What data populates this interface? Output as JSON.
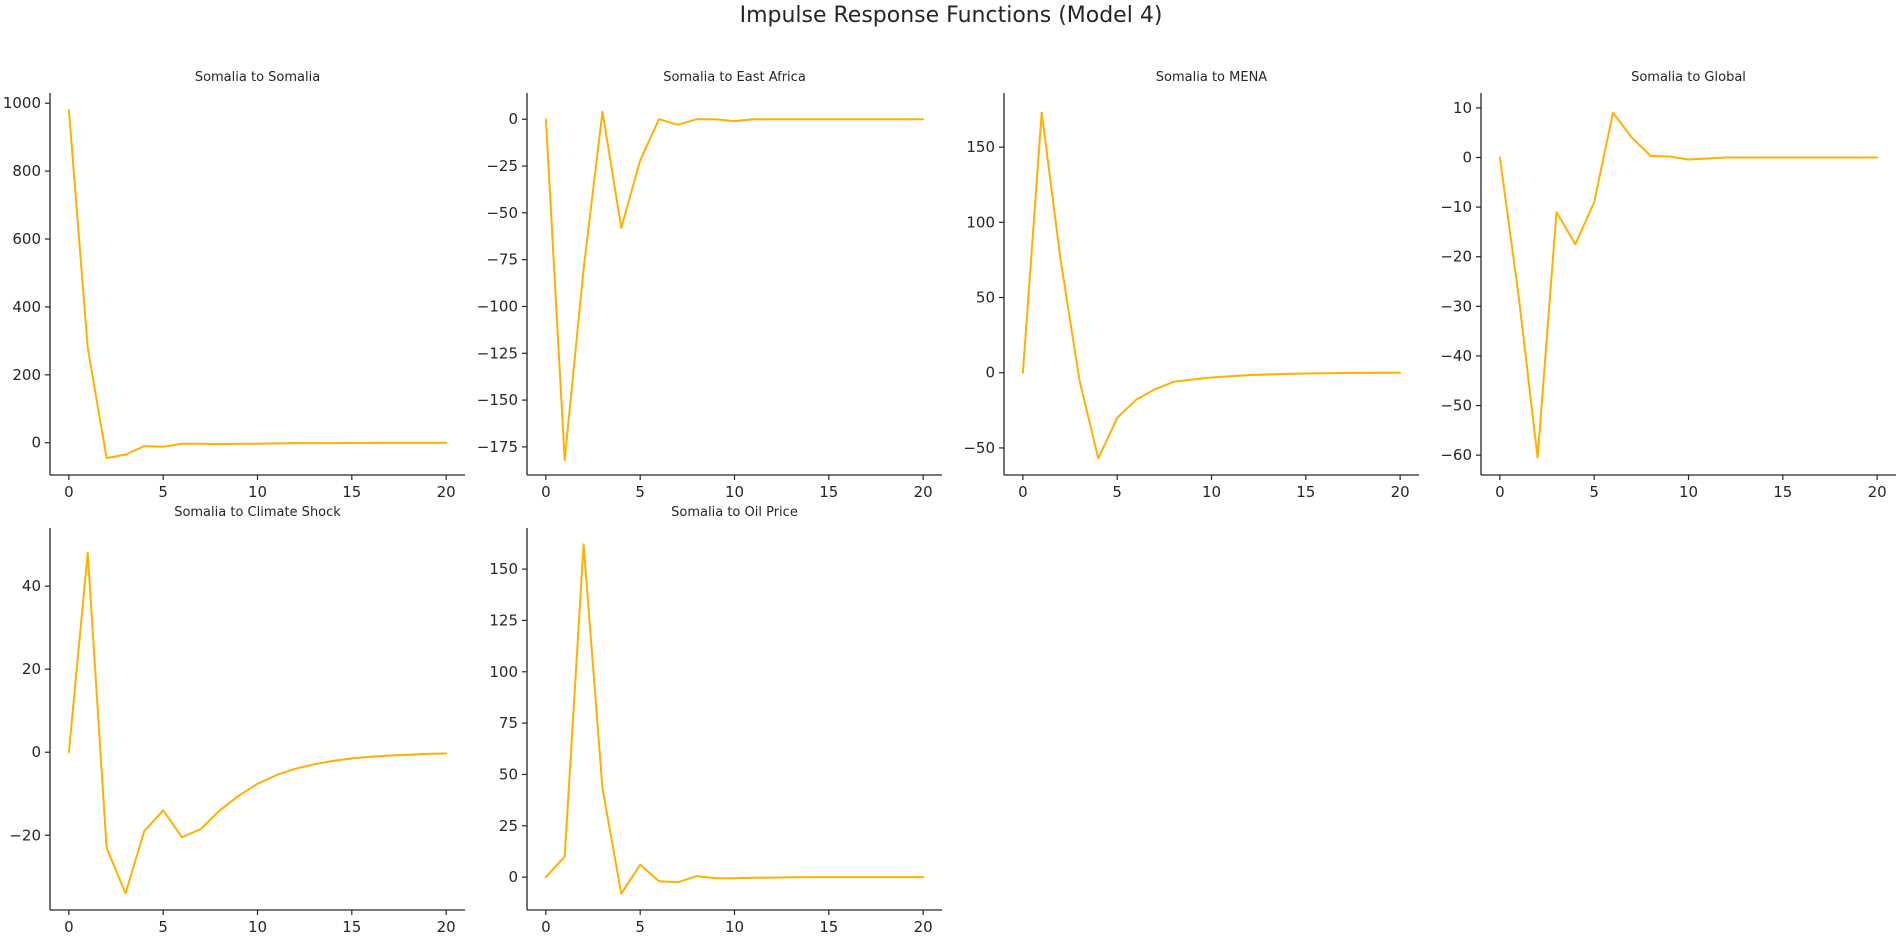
{
  "figure": {
    "title": "Impulse Response Functions (Model 4)",
    "line_color": "#FFB000"
  },
  "chart_data": [
    {
      "type": "line",
      "title": "Somalia to Somalia",
      "x": [
        0,
        1,
        2,
        3,
        4,
        5,
        6,
        7,
        8,
        9,
        10,
        11,
        12,
        13,
        14,
        15,
        16,
        17,
        18,
        19,
        20
      ],
      "values": [
        980,
        280,
        -45,
        -35,
        -10,
        -12,
        -3,
        -3,
        -4,
        -3,
        -3,
        -2,
        -1,
        -1,
        -1,
        -0.5,
        -0.5,
        0,
        0,
        0,
        0
      ],
      "xlim": [
        -1,
        21
      ],
      "ylim": [
        -95,
        1030
      ],
      "xticks": [
        0,
        5,
        10,
        15,
        20
      ],
      "yticks": [
        0,
        200,
        400,
        600,
        800,
        1000
      ],
      "ytick_labels": [
        "0",
        "200",
        "400",
        "600",
        "800",
        "1000"
      ]
    },
    {
      "type": "line",
      "title": "Somalia to East Africa",
      "x": [
        0,
        1,
        2,
        3,
        4,
        5,
        6,
        7,
        8,
        9,
        10,
        11,
        12,
        13,
        14,
        15,
        16,
        17,
        18,
        19,
        20
      ],
      "values": [
        0,
        -182,
        -80,
        4,
        -58,
        -22,
        0,
        -3,
        0,
        0,
        -1,
        0,
        0,
        0,
        0,
        0,
        0,
        0,
        0,
        0,
        0
      ],
      "xlim": [
        -1,
        21
      ],
      "ylim": [
        -190,
        14
      ],
      "xticks": [
        0,
        5,
        10,
        15,
        20
      ],
      "yticks": [
        0,
        -25,
        -50,
        -75,
        -100,
        -125,
        -150,
        -175
      ],
      "ytick_labels": [
        "0",
        "−25",
        "−50",
        "−75",
        "−100",
        "−125",
        "−150",
        "−175"
      ]
    },
    {
      "type": "line",
      "title": "Somalia to MENA",
      "x": [
        0,
        1,
        2,
        3,
        4,
        5,
        6,
        7,
        8,
        9,
        10,
        11,
        12,
        13,
        14,
        15,
        16,
        17,
        18,
        19,
        20
      ],
      "values": [
        0,
        173,
        75,
        -5,
        -57,
        -30,
        -18,
        -11,
        -6,
        -4.5,
        -3.2,
        -2.3,
        -1.6,
        -1.1,
        -0.8,
        -0.5,
        -0.3,
        -0.2,
        -0.1,
        0,
        0
      ],
      "xlim": [
        -1,
        21
      ],
      "ylim": [
        -68,
        186
      ],
      "xticks": [
        0,
        5,
        10,
        15,
        20
      ],
      "yticks": [
        -50,
        0,
        50,
        100,
        150
      ],
      "ytick_labels": [
        "−50",
        "0",
        "50",
        "100",
        "150"
      ]
    },
    {
      "type": "line",
      "title": "Somalia to Global",
      "x": [
        0,
        1,
        2,
        3,
        4,
        5,
        6,
        7,
        8,
        9,
        10,
        11,
        12,
        13,
        14,
        15,
        16,
        17,
        18,
        19,
        20
      ],
      "values": [
        0,
        -28,
        -60.5,
        -11,
        -17.5,
        -9,
        9,
        4,
        0.3,
        0.2,
        -0.4,
        -0.2,
        0,
        0,
        0,
        0,
        0,
        0,
        0,
        0,
        0
      ],
      "xlim": [
        -1,
        21
      ],
      "ylim": [
        -64,
        13
      ],
      "xticks": [
        0,
        5,
        10,
        15,
        20
      ],
      "yticks": [
        10,
        0,
        -10,
        -20,
        -30,
        -40,
        -50,
        -60
      ],
      "ytick_labels": [
        "10",
        "0",
        "−10",
        "−20",
        "−30",
        "−40",
        "−50",
        "−60"
      ]
    },
    {
      "type": "line",
      "title": "Somalia to Climate Shock",
      "x": [
        0,
        1,
        2,
        3,
        4,
        5,
        6,
        7,
        8,
        9,
        10,
        11,
        12,
        13,
        14,
        15,
        16,
        17,
        18,
        19,
        20
      ],
      "values": [
        0,
        48,
        -23,
        -34,
        -19,
        -14,
        -20.5,
        -18.5,
        -14,
        -10.5,
        -7.6,
        -5.5,
        -4,
        -2.9,
        -2.1,
        -1.5,
        -1.1,
        -0.8,
        -0.6,
        -0.4,
        -0.3
      ],
      "xlim": [
        -1,
        21
      ],
      "ylim": [
        -38,
        54
      ],
      "xticks": [
        0,
        5,
        10,
        15,
        20
      ],
      "yticks": [
        -20,
        0,
        20,
        40
      ],
      "ytick_labels": [
        "−20",
        "0",
        "20",
        "40"
      ]
    },
    {
      "type": "line",
      "title": "Somalia to Oil Price",
      "x": [
        0,
        1,
        2,
        3,
        4,
        5,
        6,
        7,
        8,
        9,
        10,
        11,
        12,
        13,
        14,
        15,
        16,
        17,
        18,
        19,
        20
      ],
      "values": [
        0,
        10,
        162,
        43,
        -8,
        6,
        -2,
        -2.5,
        0.5,
        -0.5,
        -0.5,
        -0.3,
        -0.2,
        -0.1,
        0,
        0,
        0,
        0,
        0,
        0,
        0
      ],
      "xlim": [
        -1,
        21
      ],
      "ylim": [
        -16,
        170
      ],
      "xticks": [
        0,
        5,
        10,
        15,
        20
      ],
      "yticks": [
        0,
        25,
        50,
        75,
        100,
        125,
        150
      ],
      "ytick_labels": [
        "0",
        "25",
        "50",
        "75",
        "100",
        "125",
        "150"
      ]
    }
  ]
}
